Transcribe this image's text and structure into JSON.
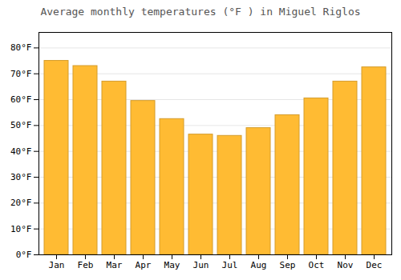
{
  "chart_data": {
    "type": "bar",
    "title": "Average monthly temperatures (°F ) in Miguel Riglos",
    "categories": [
      "Jan",
      "Feb",
      "Mar",
      "Apr",
      "May",
      "Jun",
      "Jul",
      "Aug",
      "Sep",
      "Oct",
      "Nov",
      "Dec"
    ],
    "values": [
      75,
      73,
      67,
      59.5,
      52.5,
      46.5,
      46,
      49,
      54,
      60.5,
      67,
      72.5
    ],
    "color": "#FFBB33",
    "ylim": [
      0,
      86
    ],
    "yticks": [
      {
        "value": 0,
        "label": "0°F"
      },
      {
        "value": 10,
        "label": "10°F"
      },
      {
        "value": 20,
        "label": "20°F"
      },
      {
        "value": 30,
        "label": "30°F"
      },
      {
        "value": 40,
        "label": "40°F"
      },
      {
        "value": 50,
        "label": "50°F"
      },
      {
        "value": 60,
        "label": "60°F"
      },
      {
        "value": 70,
        "label": "70°F"
      },
      {
        "value": 80,
        "label": "80°F"
      }
    ],
    "grid": true
  }
}
